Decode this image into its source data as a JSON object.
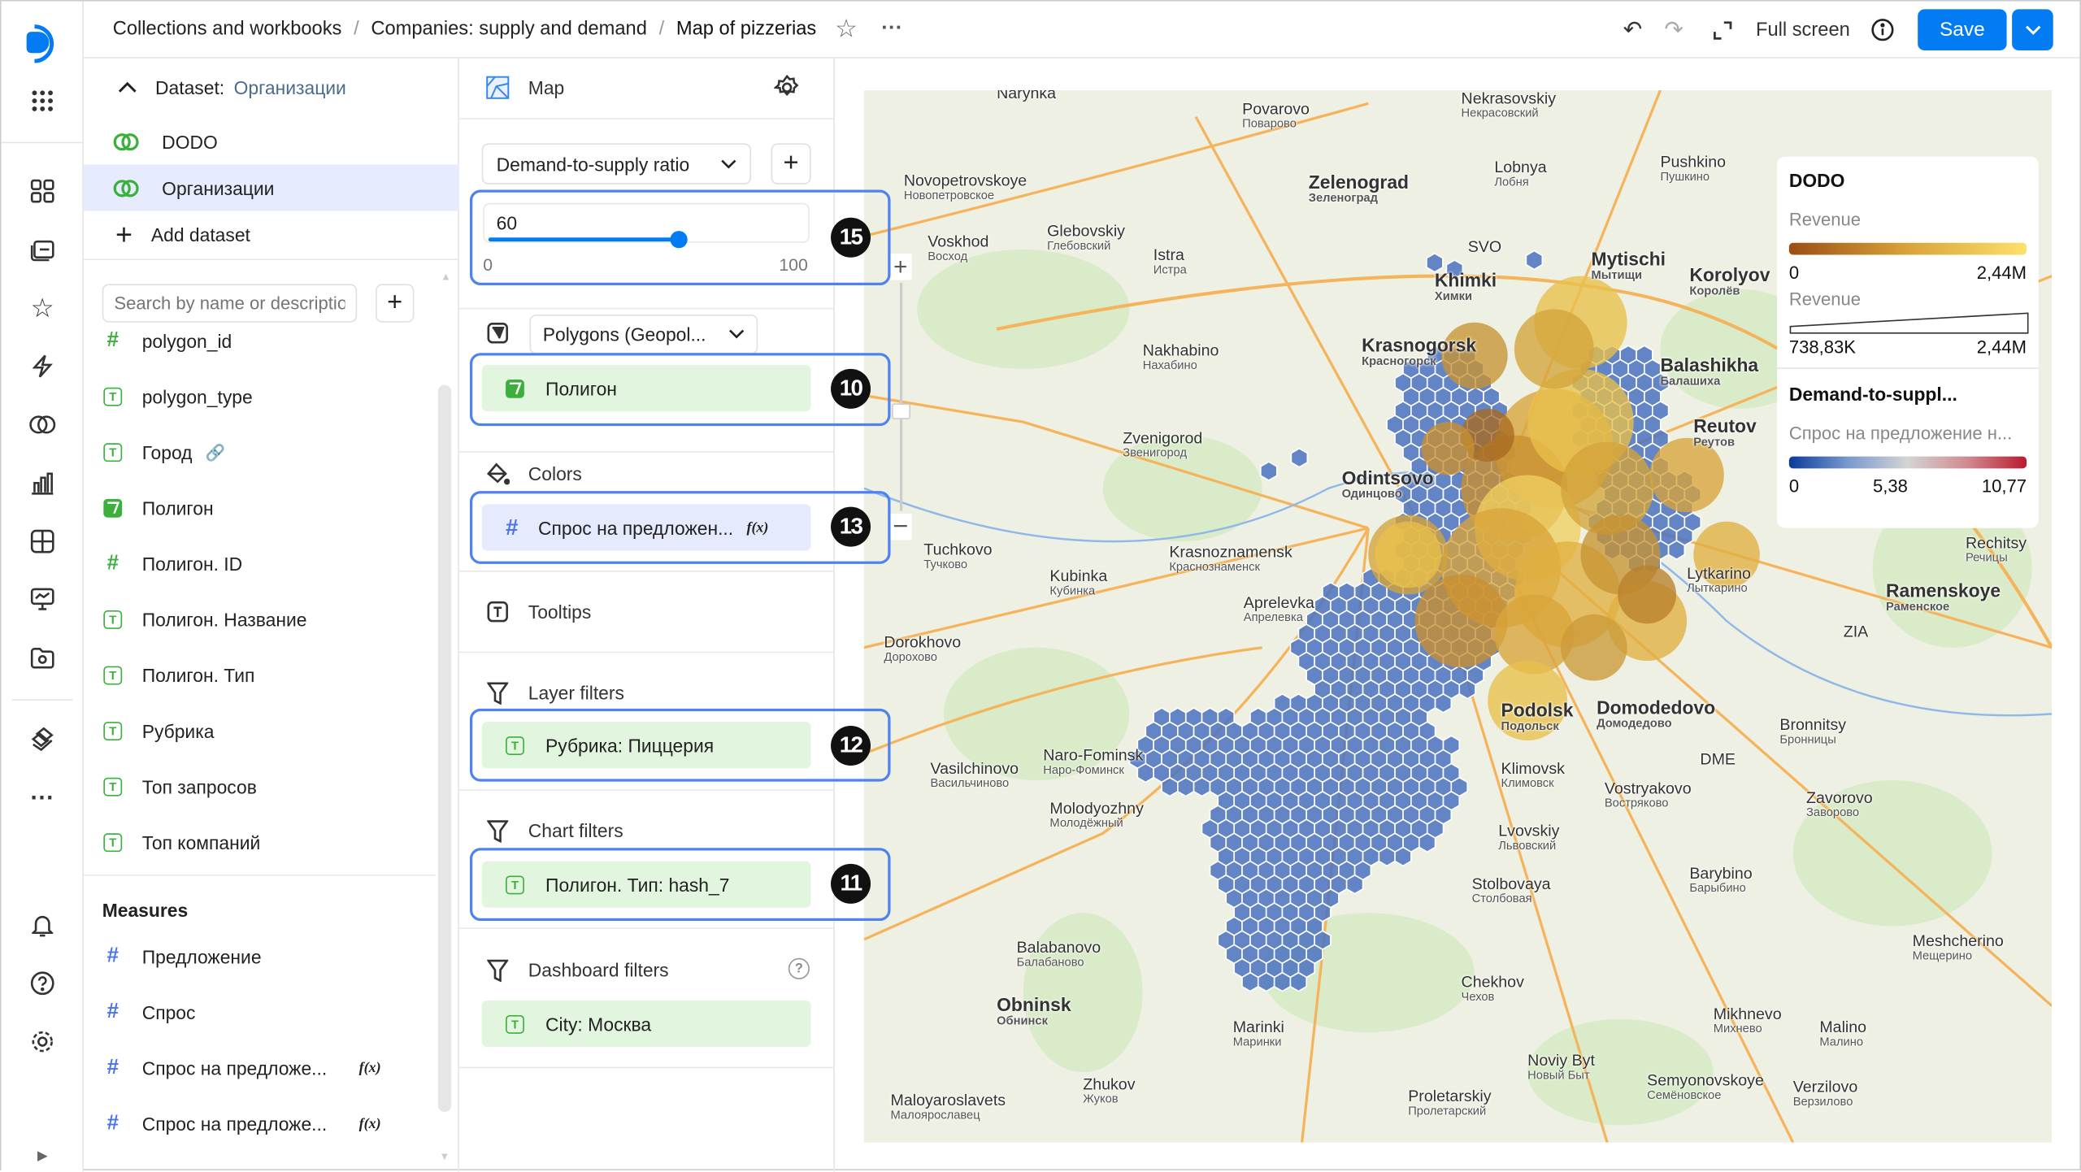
{
  "header": {
    "breadcrumbs": [
      "Collections and workbooks",
      "Companies: supply and demand",
      "Map of pizzerias"
    ],
    "fullscreen_label": "Full screen",
    "save_label": "Save"
  },
  "colors": {
    "accent": "#027bf3",
    "highlight": "#4f82f0",
    "dimension": "#3cb03c",
    "measure": "#4b74e6",
    "hexagon": "#4a72c0",
    "circle": "#e0b040"
  },
  "dataset_panel": {
    "dataset_label": "Dataset:",
    "dataset_name": "Организации",
    "datasets": [
      "DODO",
      "Организации"
    ],
    "add_dataset": "Add dataset",
    "search_placeholder": "Search by name or description",
    "dimensions": [
      {
        "name": "polygon_id",
        "type": "number"
      },
      {
        "name": "polygon_type",
        "type": "text"
      },
      {
        "name": "Город",
        "type": "text"
      },
      {
        "name": "Полигон",
        "type": "geopolygon"
      },
      {
        "name": "Полигон. ID",
        "type": "number"
      },
      {
        "name": "Полигон. Название",
        "type": "text"
      },
      {
        "name": "Полигон. Тип",
        "type": "text"
      },
      {
        "name": "Рубрика",
        "type": "text"
      },
      {
        "name": "Топ запросов",
        "type": "text"
      },
      {
        "name": "Топ компаний",
        "type": "text"
      }
    ],
    "measures_title": "Measures",
    "measures": [
      {
        "name": "Предложение"
      },
      {
        "name": "Спрос"
      },
      {
        "name": "Спрос на предложе...",
        "formula": "f(x)"
      },
      {
        "name": "Спрос на предложе...",
        "formula": "f(x)"
      }
    ]
  },
  "config_panel": {
    "chart_type": "Map",
    "layer_select": "Demand-to-supply ratio",
    "opacity": {
      "value": "60",
      "min": "0",
      "max": "100",
      "fraction": 0.6
    },
    "geometry_select": "Polygons (Geopol...",
    "geometry_field": "Полигон",
    "colors_label": "Colors",
    "colors_field": "Спрос на предложен...",
    "colors_formula": "f(x)",
    "tooltips_label": "Tooltips",
    "layer_filters_label": "Layer filters",
    "layer_filter": "Рубрика: Пиццерия",
    "chart_filters_label": "Chart filters",
    "chart_filter": "Полигон. Тип: hash_7",
    "dashboard_filters_label": "Dashboard filters",
    "dashboard_filter": "City: Москва"
  },
  "badges": [
    "15",
    "10",
    "13",
    "12",
    "11"
  ],
  "legend": {
    "title1": "DODO",
    "revenue1": "Revenue",
    "rev1_min": "0",
    "rev1_max": "2,44M",
    "revenue2": "Revenue",
    "rev2_min": "738,83K",
    "rev2_max": "2,44M",
    "title2": "Demand-to-suppl...",
    "subtitle2": "Спрос на предложение н...",
    "ratio_min": "0",
    "ratio_mid": "5,38",
    "ratio_max": "10,77"
  },
  "map_labels": [
    {
      "en": "Zelenograd",
      "ru": "Зеленоград",
      "big": true
    },
    {
      "en": "Lobnya",
      "ru": "Лобня"
    },
    {
      "en": "Pushkino",
      "ru": "Пушкино"
    },
    {
      "en": "Mytischi",
      "ru": "Мытищи",
      "big": true
    },
    {
      "en": "Korolyov",
      "ru": "Королёв",
      "big": true
    },
    {
      "en": "Khimki",
      "ru": "Химки",
      "big": true
    },
    {
      "en": "Balashikha",
      "ru": "Балашиха",
      "big": true
    },
    {
      "en": "Reutov",
      "ru": "Реутов",
      "big": true
    },
    {
      "en": "Odintsovo",
      "ru": "Одинцово",
      "big": true
    },
    {
      "en": "Krasnogorsk",
      "ru": "Красногорск",
      "big": true
    },
    {
      "en": "Zvenigorod",
      "ru": "Звенигород"
    },
    {
      "en": "Nakhabino",
      "ru": "Нахабино"
    },
    {
      "en": "Istra",
      "ru": "Истра"
    },
    {
      "en": "Glebovskiy",
      "ru": "Глебовский"
    },
    {
      "en": "Voskhod",
      "ru": "Восход"
    },
    {
      "en": "Novopetrovskoye",
      "ru": "Новопетровское"
    },
    {
      "en": "Povarovo",
      "ru": "Поварово"
    },
    {
      "en": "Nekrasovskiy",
      "ru": "Некрасовский"
    },
    {
      "en": "Tuchkovo",
      "ru": "Тучково"
    },
    {
      "en": "Kubinka",
      "ru": "Кубинка"
    },
    {
      "en": "Krasnoznamensk",
      "ru": "Краснознаменск"
    },
    {
      "en": "Aprelevka",
      "ru": "Апрелевка"
    },
    {
      "en": "Dorokhovo",
      "ru": "Дорохово"
    },
    {
      "en": "Lytkarino",
      "ru": "Лыткарино"
    },
    {
      "en": "Ramenskoye",
      "ru": "Раменское",
      "big": true
    },
    {
      "en": "Podolsk",
      "ru": "Подольск",
      "big": true
    },
    {
      "en": "Domodedovo",
      "ru": "Домодедово",
      "big": true
    },
    {
      "en": "Bronnitsy",
      "ru": "Бронницы"
    },
    {
      "en": "Naro-Fominsk",
      "ru": "Наро-Фоминск"
    },
    {
      "en": "Vasilchinovo",
      "ru": "Васильчиново"
    },
    {
      "en": "Molodyozhny",
      "ru": "Молодёжный"
    },
    {
      "en": "Klimovsk",
      "ru": "Климовск"
    },
    {
      "en": "Vostryakovo",
      "ru": "Востряково"
    },
    {
      "en": "Zavorovo",
      "ru": "Заворово"
    },
    {
      "en": "Lvovskiy",
      "ru": "Львовский"
    },
    {
      "en": "Barybino",
      "ru": "Барыбино"
    },
    {
      "en": "Stolbovaya",
      "ru": "Столбовая"
    },
    {
      "en": "Balabanovo",
      "ru": "Балабаново"
    },
    {
      "en": "Obninsk",
      "ru": "Обнинск",
      "big": true
    },
    {
      "en": "Chekhov",
      "ru": "Чехов"
    },
    {
      "en": "Marinki",
      "ru": "Маринки"
    },
    {
      "en": "Zhukov",
      "ru": "Жуков"
    },
    {
      "en": "Maloyaroslavets",
      "ru": "Малоярославец"
    },
    {
      "en": "Noviy Byt",
      "ru": "Новый Быт"
    },
    {
      "en": "Proletarskiy",
      "ru": "Пролетарский"
    },
    {
      "en": "Semyonovskoye",
      "ru": "Семёновское"
    },
    {
      "en": "Mikhnevo",
      "ru": "Михнево"
    },
    {
      "en": "Malino",
      "ru": "Малино"
    },
    {
      "en": "Verzilovo",
      "ru": "Верзилово"
    },
    {
      "en": "Meshcherino",
      "ru": "Мещерино"
    },
    {
      "en": "Rechitsy",
      "ru": "Речицы"
    },
    {
      "en": "DME",
      "ru": ""
    },
    {
      "en": "SVO",
      "ru": ""
    },
    {
      "en": "ZIA",
      "ru": ""
    },
    {
      "en": "Narynka",
      "ru": ""
    }
  ]
}
